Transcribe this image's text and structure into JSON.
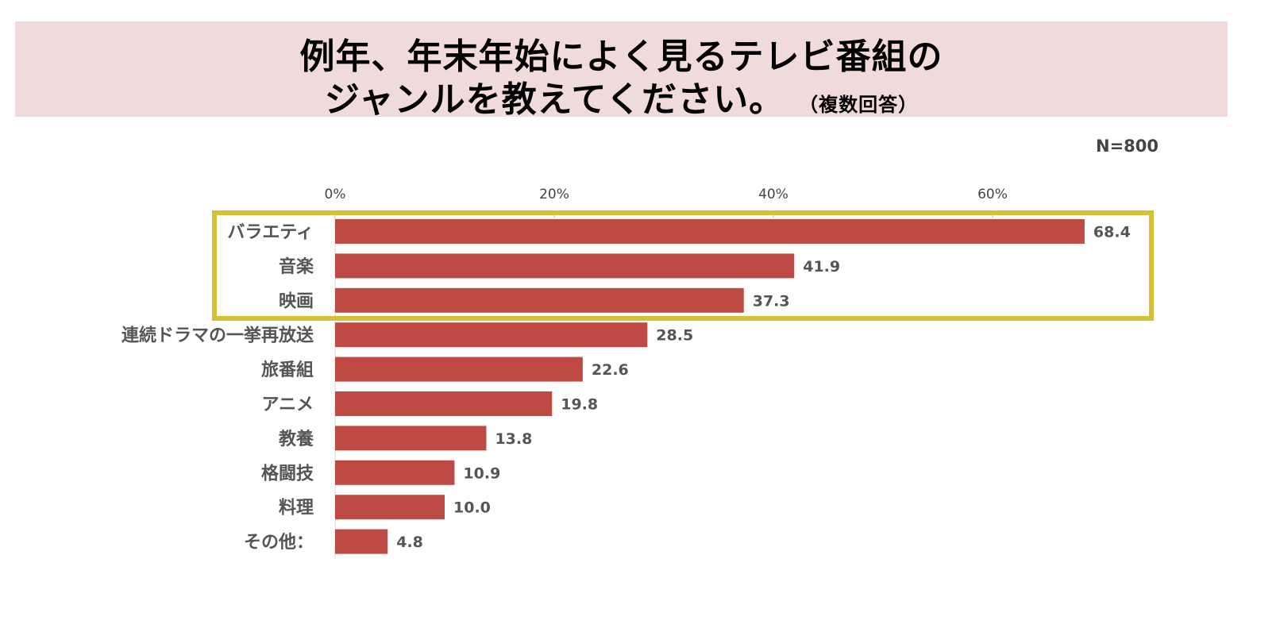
{
  "title": {
    "line1": "例年、年末年始によく見るテレビ番組の",
    "line2": "ジャンルを教えてください。",
    "note": "（複数回答）"
  },
  "sample_size": "N=800",
  "colors": {
    "bar": "#be4b43",
    "highlight_border": "#d4c234",
    "title_background": "#f1dada"
  },
  "chart_data": {
    "type": "bar",
    "orientation": "horizontal",
    "title": "例年、年末年始によく見るテレビ番組のジャンルを教えてください。（複数回答）",
    "xlabel": "",
    "ylabel": "",
    "xlim": [
      0,
      70
    ],
    "x_ticks": [
      0,
      20,
      40,
      60
    ],
    "x_tick_labels": [
      "0%",
      "20%",
      "40%",
      "60%"
    ],
    "categories": [
      "バラエティ",
      "音楽",
      "映画",
      "連続ドラマの一挙再放送",
      "旅番組",
      "アニメ",
      "教養",
      "格闘技",
      "料理",
      "その他："
    ],
    "values": [
      68.4,
      41.9,
      37.3,
      28.5,
      22.6,
      19.8,
      13.8,
      10.9,
      10.0,
      4.8
    ],
    "value_labels": [
      "68.4",
      "41.9",
      "37.3",
      "28.5",
      "22.6",
      "19.8",
      "13.8",
      "10.9",
      "10.0",
      "4.8"
    ],
    "highlighted_categories": [
      "バラエティ",
      "音楽",
      "映画"
    ],
    "grid": false,
    "legend": "none"
  }
}
